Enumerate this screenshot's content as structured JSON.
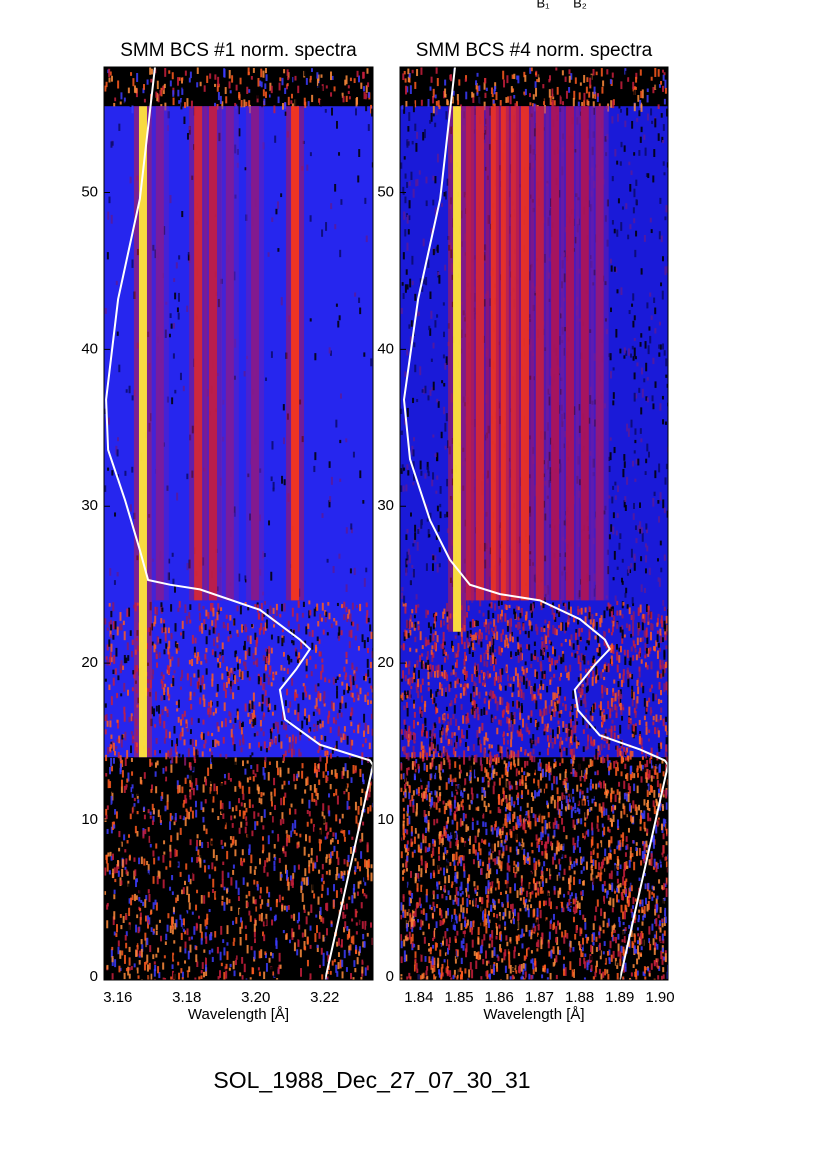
{
  "top_labels": [
    "B₁",
    "B₂"
  ],
  "footer": "SOL_1988_Dec_27_07_30_31",
  "chart_data": [
    {
      "type": "spectrogram",
      "title": "SMM BCS #1 norm. spectra",
      "xlabel": "Wavelength [Å]",
      "xlim": [
        3.156,
        3.234
      ],
      "xticks": [
        3.16,
        3.18,
        {
          "value": 3.2,
          "label": "3.20"
        },
        3.22
      ],
      "ylim": [
        -0.2,
        58
      ],
      "yticks": [
        0,
        10,
        20,
        30,
        40,
        50
      ],
      "spectrum_ylim": [
        14,
        55.5
      ],
      "lines": [
        {
          "x": 3.1673,
          "ymin": 14,
          "ymax": 55.5,
          "intensity": 1.0
        },
        {
          "x": 3.1722,
          "ymin": 24,
          "ymax": 55.5,
          "intensity": 0.3
        },
        {
          "x": 3.1833,
          "ymin": 24,
          "ymax": 55.5,
          "intensity": 0.7
        },
        {
          "x": 3.1876,
          "ymin": 24,
          "ymax": 55.5,
          "intensity": 0.6
        },
        {
          "x": 3.1925,
          "ymin": 24,
          "ymax": 55.5,
          "intensity": 0.3
        },
        {
          "x": 3.1998,
          "ymin": 24,
          "ymax": 55.5,
          "intensity": 0.35
        },
        {
          "x": 3.2114,
          "ymin": 24,
          "ymax": 55.5,
          "intensity": 0.85
        }
      ],
      "curve": {
        "color": "#ffffff",
        "x": [
          3.1708,
          3.1664,
          3.1601,
          3.1566,
          3.1572,
          3.1621,
          3.1664,
          3.1688,
          3.1751,
          3.1838,
          3.2012,
          3.2128,
          3.2157,
          3.2117,
          3.207,
          3.2085,
          3.2186,
          3.2331,
          3.234,
          3.2201
        ],
        "y": [
          58.0,
          49.6,
          43.2,
          36.8,
          33.6,
          30.4,
          27.2,
          25.3,
          25.0,
          24.7,
          23.4,
          21.5,
          20.9,
          19.6,
          18.3,
          16.4,
          14.8,
          13.8,
          13.5,
          -0.2
        ]
      }
    },
    {
      "type": "spectrogram",
      "title": "SMM BCS #4 norm. spectra",
      "xlabel": "Wavelength [Å]",
      "xlim": [
        1.8353,
        1.902
      ],
      "xticks": [
        1.84,
        1.85,
        1.86,
        1.87,
        1.88,
        1.89,
        {
          "value": 1.9,
          "label": "1.90"
        }
      ],
      "ylim": [
        -0.2,
        58
      ],
      "yticks": [
        0,
        10,
        20,
        30,
        40,
        50
      ],
      "spectrum_ylim": [
        14,
        55.5
      ],
      "lines": [
        {
          "x": 1.8495,
          "ymin": 22,
          "ymax": 55.5,
          "intensity": 1.0
        },
        {
          "x": 1.8527,
          "ymin": 24,
          "ymax": 55.5,
          "intensity": 0.6
        },
        {
          "x": 1.8552,
          "ymin": 24,
          "ymax": 55.5,
          "intensity": 0.7
        },
        {
          "x": 1.8589,
          "ymin": 24,
          "ymax": 55.5,
          "intensity": 0.8
        },
        {
          "x": 1.8614,
          "ymin": 24,
          "ymax": 55.5,
          "intensity": 0.8
        },
        {
          "x": 1.8639,
          "ymin": 24,
          "ymax": 55.5,
          "intensity": 0.7
        },
        {
          "x": 1.8664,
          "ymin": 24,
          "ymax": 55.5,
          "intensity": 0.8
        },
        {
          "x": 1.8701,
          "ymin": 24,
          "ymax": 55.5,
          "intensity": 0.6
        },
        {
          "x": 1.8739,
          "ymin": 24,
          "ymax": 55.5,
          "intensity": 0.5
        },
        {
          "x": 1.8776,
          "ymin": 24,
          "ymax": 55.5,
          "intensity": 0.5
        },
        {
          "x": 1.8813,
          "ymin": 24,
          "ymax": 55.5,
          "intensity": 0.5
        },
        {
          "x": 1.885,
          "ymin": 24,
          "ymax": 55.5,
          "intensity": 0.4
        }
      ],
      "curve": {
        "color": "#ffffff",
        "x": [
          1.849,
          1.8453,
          1.8398,
          1.8363,
          1.8378,
          1.8428,
          1.8477,
          1.8527,
          1.8602,
          1.8701,
          1.8801,
          1.8863,
          1.8875,
          1.8838,
          1.8788,
          1.8796,
          1.885,
          1.895,
          1.9012,
          1.902,
          1.89
        ],
        "y": [
          58.0,
          49.6,
          43.2,
          36.8,
          33.0,
          29.1,
          26.6,
          25.0,
          24.4,
          24.0,
          22.8,
          21.5,
          20.9,
          19.9,
          18.3,
          17.0,
          15.4,
          14.5,
          13.8,
          13.5,
          -0.2
        ]
      }
    }
  ]
}
